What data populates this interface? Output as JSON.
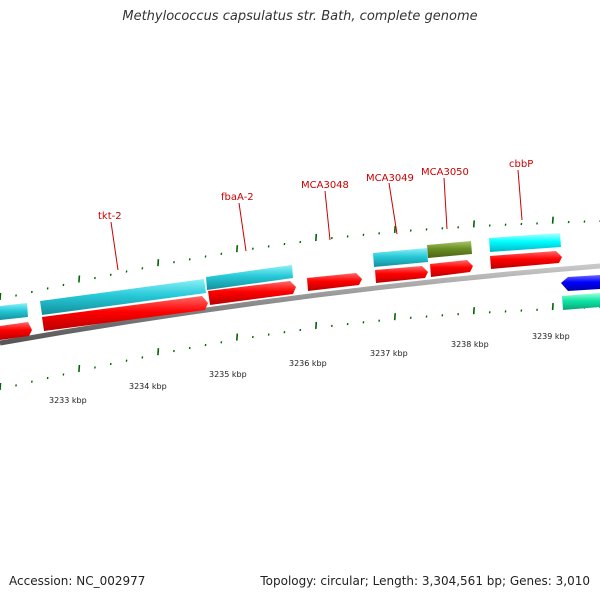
{
  "title": "Methylococcus capsulatus str. Bath, complete genome",
  "footer": {
    "accession": "Accession: NC_002977",
    "summary": "Topology: circular; Length: 3,304,561 bp; Genes: 3,010"
  },
  "axis_ticks": [
    "3233 kbp",
    "3234 kbp",
    "3235 kbp",
    "3236 kbp",
    "3237 kbp",
    "3238 kbp",
    "3239 kbp"
  ],
  "gene_labels": [
    "tkt-2",
    "fbaA-2",
    "MCA3048",
    "MCA3049",
    "MCA3050",
    "cbbP"
  ],
  "colors": {
    "cds_forward": "#ff0000",
    "gene_outer": "#26c6d6",
    "gene_cyan": "#00ffff",
    "gene_olive": "#6b8e23",
    "gene_blue": "#0000ff",
    "gene_teal": "#00e0a0",
    "tick_green": "#006400",
    "backbone": "#808080",
    "label_red": "#cc0000"
  }
}
